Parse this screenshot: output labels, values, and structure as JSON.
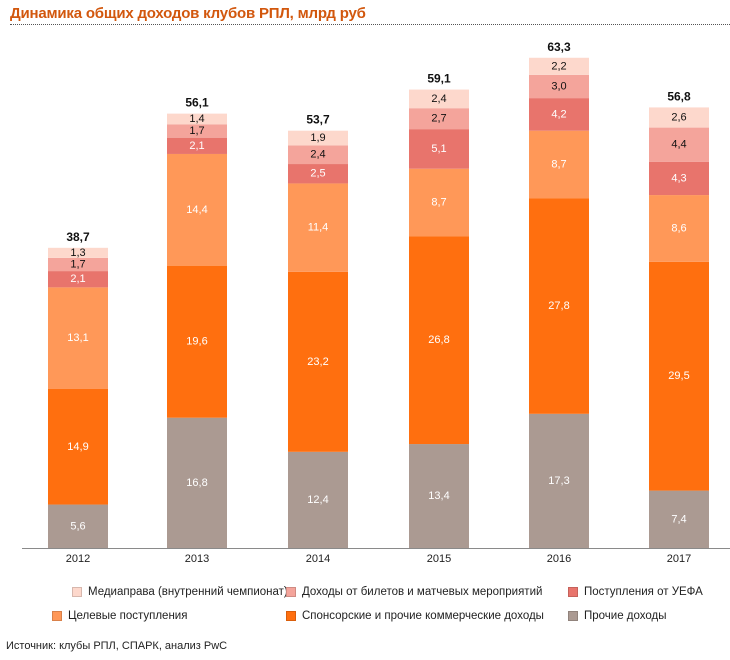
{
  "title": "Динамика общих доходов клубов РПЛ, млрд руб",
  "source": "Источник: клубы РПЛ, СПАРК, анализ PwC",
  "chart_data": {
    "type": "bar",
    "stacked": true,
    "title": "Динамика общих доходов клубов РПЛ, млрд руб",
    "xlabel": "",
    "ylabel": "",
    "categories": [
      "2012",
      "2013",
      "2014",
      "2015",
      "2016",
      "2017"
    ],
    "totals": [
      "38,7",
      "56,1",
      "53,7",
      "59,1",
      "63,3",
      "56,8"
    ],
    "ylim": [
      0,
      63.3
    ],
    "grid": false,
    "legend_position": "bottom",
    "series": [
      {
        "name": "Прочие доходы",
        "color": "#ab9a92",
        "label_color": "#ffffff",
        "values": [
          5.6,
          16.8,
          12.4,
          13.4,
          17.3,
          7.4
        ]
      },
      {
        "name": "Спонсорские и прочие коммерческие доходы",
        "color": "#ff6f0f",
        "label_color": "#ffffff",
        "values": [
          14.9,
          19.6,
          23.2,
          26.8,
          27.8,
          29.5
        ]
      },
      {
        "name": "Целевые поступления",
        "color": "#ff9858",
        "label_color": "#ffffff",
        "values": [
          13.1,
          14.4,
          11.4,
          8.7,
          8.7,
          8.6
        ]
      },
      {
        "name": "Поступления от УЕФА",
        "color": "#e8746c",
        "label_color": "#ffffff",
        "values": [
          2.1,
          2.1,
          2.5,
          5.1,
          4.2,
          4.3
        ]
      },
      {
        "name": "Доходы от билетов и матчевых мероприятий",
        "color": "#f4a49b",
        "label_color": "#111111",
        "values": [
          1.7,
          1.7,
          2.4,
          2.7,
          3.0,
          4.4
        ]
      },
      {
        "name": "Медиаправа (внутренний чемпионат)",
        "color": "#fdd8cc",
        "label_color": "#111111",
        "values": [
          1.3,
          1.4,
          1.9,
          2.4,
          2.2,
          2.6
        ]
      }
    ]
  },
  "legend": [
    {
      "label": "Медиаправа (внутренний чемпионат)",
      "color": "#fdd8cc"
    },
    {
      "label": "Доходы от билетов и матчевых мероприятий",
      "color": "#f4a49b"
    },
    {
      "label": "Поступления от УЕФА",
      "color": "#e8746c"
    },
    {
      "label": "Целевые поступления",
      "color": "#ff9858"
    },
    {
      "label": "Спонсорские и прочие коммерческие доходы",
      "color": "#ff6f0f"
    },
    {
      "label": "Прочие доходы",
      "color": "#ab9a92"
    }
  ]
}
